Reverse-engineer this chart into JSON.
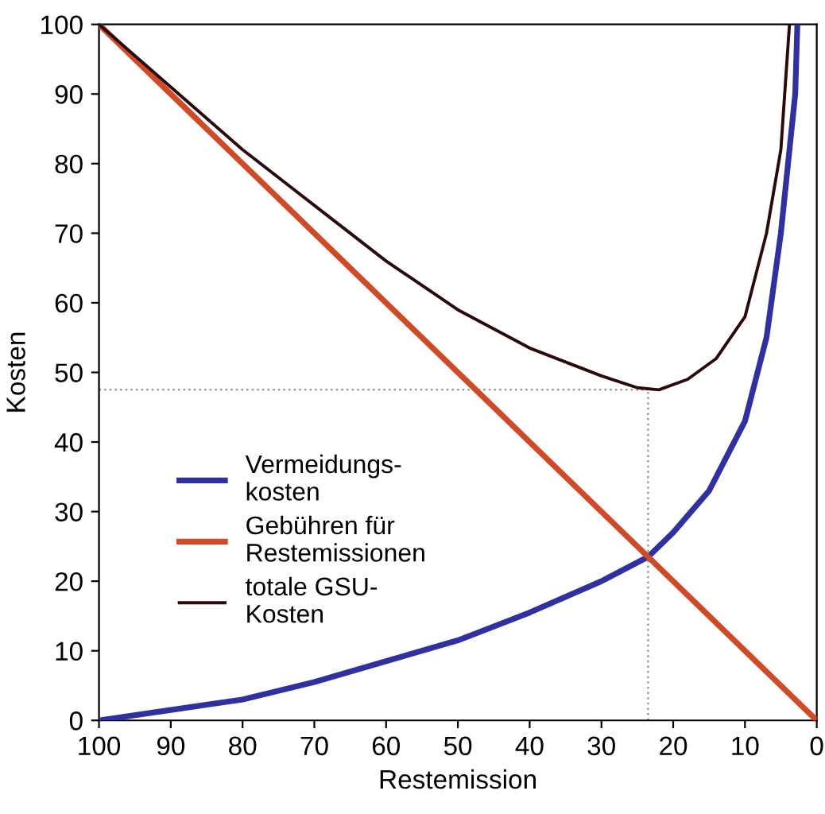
{
  "chart_data": {
    "type": "line",
    "xlabel": "Restemission",
    "ylabel": "Kosten",
    "xlim": [
      100,
      0
    ],
    "ylim": [
      0,
      100
    ],
    "xticks": [
      100,
      90,
      80,
      70,
      60,
      50,
      40,
      30,
      20,
      10,
      0
    ],
    "yticks": [
      0,
      10,
      20,
      30,
      40,
      50,
      60,
      70,
      80,
      90,
      100
    ],
    "grid": false,
    "legend": "lower left",
    "marker": "none",
    "line_style": "solid",
    "series": [
      {
        "name": "Vermeidungs-\nkosten",
        "color": "#3030a0",
        "x": [
          100,
          90,
          80,
          70,
          60,
          50,
          40,
          30,
          23.5,
          20,
          15,
          10,
          7,
          5,
          3,
          2.7
        ],
        "values": [
          0,
          1.5,
          3,
          5.5,
          8.5,
          11.5,
          15.5,
          20,
          23.5,
          27,
          33,
          43,
          55,
          70,
          90,
          100
        ]
      },
      {
        "name": "Gebühren für\nRestemissionen",
        "color": "#d04a28",
        "x": [
          100,
          0
        ],
        "values": [
          100,
          0
        ]
      },
      {
        "name": "totale GSU-\nKosten",
        "color": "#2a0a0a",
        "x": [
          100,
          90,
          80,
          70,
          60,
          50,
          40,
          30,
          25,
          22,
          18,
          14,
          10,
          7,
          5,
          3.8
        ],
        "values": [
          100,
          91,
          82,
          74,
          66,
          59,
          53.5,
          49.5,
          47.8,
          47.5,
          49,
          52,
          58,
          70,
          82,
          100
        ]
      }
    ],
    "ref_lines": [
      {
        "axis": "y",
        "value": 47.5,
        "color": "#999999",
        "line_style": "dotted"
      },
      {
        "axis": "x",
        "value": 23.5,
        "color": "#999999",
        "line_style": "dotted"
      }
    ]
  }
}
